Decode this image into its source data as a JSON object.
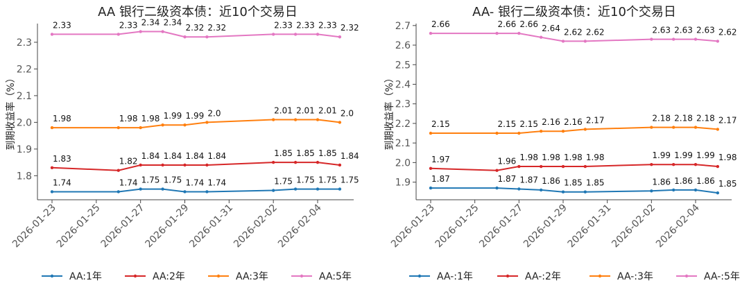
{
  "chart_data": [
    {
      "type": "line",
      "title": "AA 银行二级资本债：近10个交易日",
      "xlabel": "",
      "ylabel": "到期收益率（%）",
      "x": [
        "2026-01-23",
        "2026-01-26",
        "2026-01-27",
        "2026-01-28",
        "2026-01-29",
        "2026-01-30",
        "2026-02-02",
        "2026-02-03",
        "2026-02-04",
        "2026-02-05"
      ],
      "xticks": [
        "2026-01-23",
        "2026-01-25",
        "2026-01-27",
        "2026-01-29",
        "2026-01-31",
        "2026-02-02",
        "2026-02-04"
      ],
      "ylim": [
        1.71,
        2.37
      ],
      "yticks": [
        1.8,
        1.9,
        2.0,
        2.1,
        2.2,
        2.3
      ],
      "ytick_labels": [
        "1.8",
        "1.9",
        "2.0",
        "2.1",
        "2.2",
        "2.3"
      ],
      "legend_position": "bottom",
      "grid": false,
      "series": [
        {
          "name": "AA:1年",
          "color": "#1f77b4",
          "values": [
            1.74,
            1.74,
            1.75,
            1.75,
            1.74,
            1.74,
            1.745,
            1.75,
            1.75,
            1.75
          ],
          "labels": [
            "1.74",
            "1.74",
            "1.75",
            "1.75",
            "1.74",
            "1.74",
            "1.75",
            "1.75",
            "1.75",
            "1.75"
          ]
        },
        {
          "name": "AA:2年",
          "color": "#d62728",
          "values": [
            1.83,
            1.82,
            1.84,
            1.84,
            1.84,
            1.84,
            1.85,
            1.85,
            1.85,
            1.84
          ],
          "labels": [
            "1.83",
            "1.82",
            "1.84",
            "1.84",
            "1.84",
            "1.84",
            "1.85",
            "1.85",
            "1.85",
            "1.84"
          ]
        },
        {
          "name": "AA:3年",
          "color": "#ff7f0e",
          "values": [
            1.98,
            1.98,
            1.98,
            1.99,
            1.99,
            2.0,
            2.01,
            2.01,
            2.01,
            2.0
          ],
          "labels": [
            "1.98",
            "1.98",
            "1.98",
            "1.99",
            "1.99",
            "2.0",
            "2.01",
            "2.01",
            "2.01",
            "2.0"
          ]
        },
        {
          "name": "AA:5年",
          "color": "#e377c2",
          "values": [
            2.33,
            2.33,
            2.34,
            2.34,
            2.32,
            2.32,
            2.33,
            2.33,
            2.33,
            2.32
          ],
          "labels": [
            "2.33",
            "2.33",
            "2.34",
            "2.34",
            "2.32",
            "2.32",
            "2.33",
            "2.33",
            "2.33",
            "2.32"
          ]
        }
      ]
    },
    {
      "type": "line",
      "title": "AA- 银行二级资本债：近10个交易日",
      "xlabel": "",
      "ylabel": "到期收益率（%）",
      "x": [
        "2026-01-23",
        "2026-01-26",
        "2026-01-27",
        "2026-01-28",
        "2026-01-29",
        "2026-01-30",
        "2026-02-02",
        "2026-02-03",
        "2026-02-04",
        "2026-02-05"
      ],
      "xticks": [
        "2026-01-23",
        "2026-01-25",
        "2026-01-27",
        "2026-01-29",
        "2026-01-31",
        "2026-02-02",
        "2026-02-04"
      ],
      "ylim": [
        1.81,
        2.71
      ],
      "yticks": [
        1.9,
        2.0,
        2.1,
        2.2,
        2.3,
        2.4,
        2.5,
        2.6,
        2.7
      ],
      "ytick_labels": [
        "1.9",
        "2.0",
        "2.1",
        "2.2",
        "2.3",
        "2.4",
        "2.5",
        "2.6",
        "2.7"
      ],
      "legend_position": "bottom",
      "grid": false,
      "series": [
        {
          "name": "AA-:1年",
          "color": "#1f77b4",
          "values": [
            1.87,
            1.87,
            1.865,
            1.86,
            1.85,
            1.85,
            1.855,
            1.86,
            1.86,
            1.845
          ],
          "labels": [
            "1.87",
            "1.87",
            "1.87",
            "1.86",
            "1.85",
            "1.85",
            "1.86",
            "1.86",
            "1.86",
            "1.85"
          ]
        },
        {
          "name": "AA-:2年",
          "color": "#d62728",
          "values": [
            1.97,
            1.96,
            1.98,
            1.98,
            1.98,
            1.98,
            1.99,
            1.99,
            1.99,
            1.98
          ],
          "labels": [
            "1.97",
            "1.96",
            "1.98",
            "1.98",
            "1.98",
            "1.98",
            "1.99",
            "1.99",
            "1.99",
            "1.98"
          ]
        },
        {
          "name": "AA-:3年",
          "color": "#ff7f0e",
          "values": [
            2.15,
            2.15,
            2.15,
            2.16,
            2.16,
            2.17,
            2.18,
            2.18,
            2.18,
            2.17
          ],
          "labels": [
            "2.15",
            "2.15",
            "2.15",
            "2.16",
            "2.16",
            "2.17",
            "2.18",
            "2.18",
            "2.18",
            "2.17"
          ]
        },
        {
          "name": "AA-:5年",
          "color": "#e377c2",
          "values": [
            2.66,
            2.66,
            2.66,
            2.64,
            2.62,
            2.62,
            2.63,
            2.63,
            2.63,
            2.62
          ],
          "labels": [
            "2.66",
            "2.66",
            "2.66",
            "2.64",
            "2.62",
            "2.62",
            "2.63",
            "2.63",
            "2.63",
            "2.62"
          ]
        }
      ]
    }
  ]
}
